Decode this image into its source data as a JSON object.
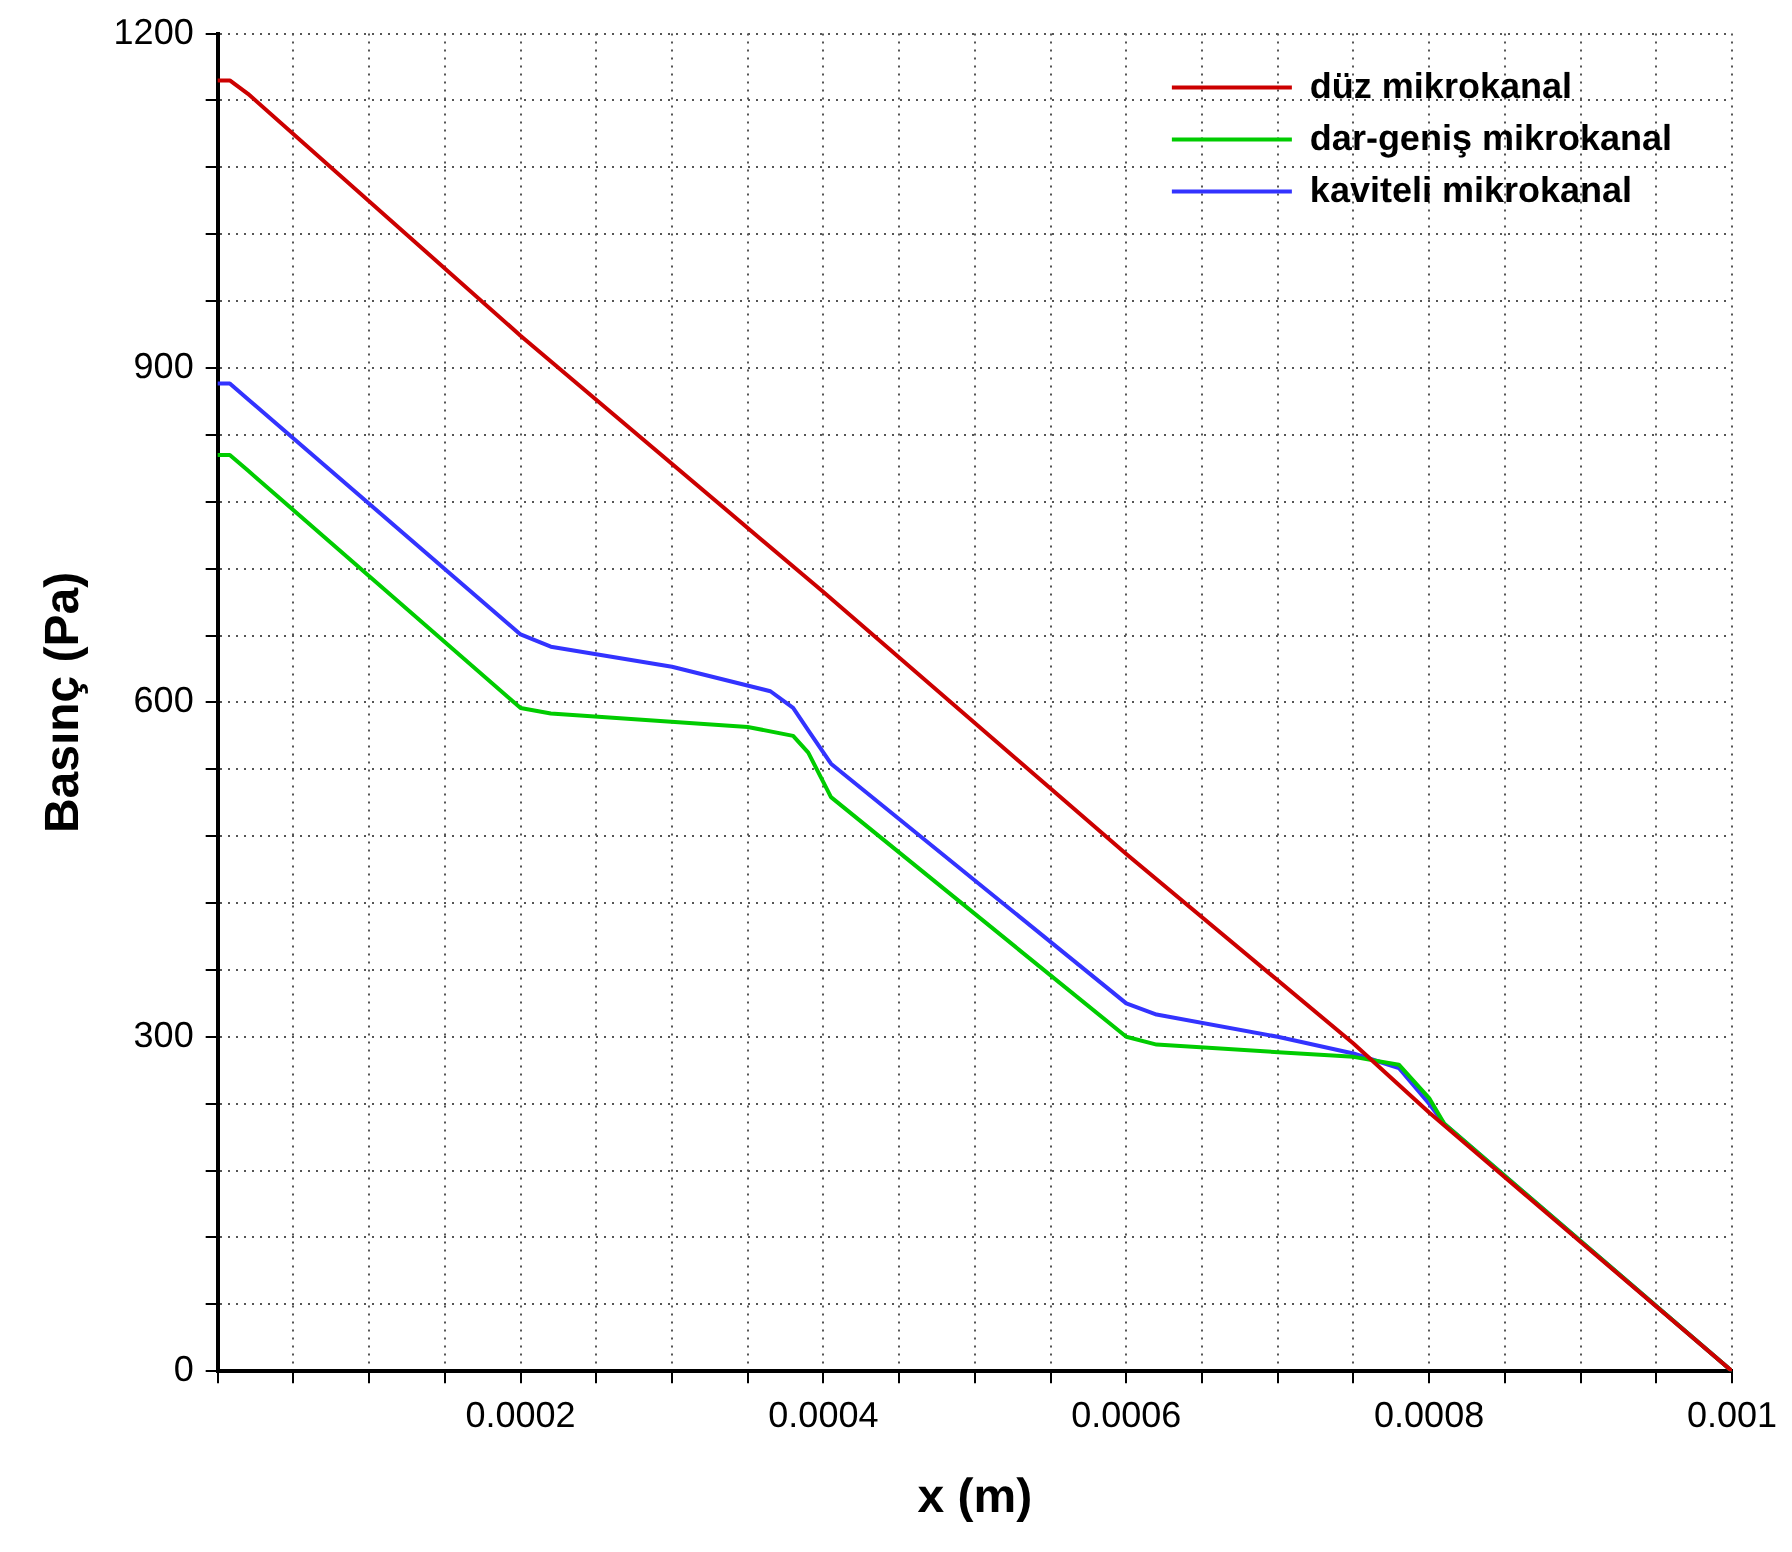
{
  "chart_data": {
    "type": "line",
    "xlabel": "x (m)",
    "ylabel": "Basınç (Pa)",
    "xlim": [
      0,
      0.001
    ],
    "ylim": [
      0,
      1200
    ],
    "xticks": [
      {
        "value": 0,
        "label": null
      },
      {
        "value": 5e-05,
        "label": null
      },
      {
        "value": 0.0001,
        "label": null
      },
      {
        "value": 0.00015,
        "label": null
      },
      0.0002,
      {
        "value": 0.00025,
        "label": null
      },
      {
        "value": 0.0003,
        "label": null
      },
      {
        "value": 0.00035,
        "label": null
      },
      0.0004,
      {
        "value": 0.00045,
        "label": null
      },
      {
        "value": 0.0005,
        "label": null
      },
      {
        "value": 0.00055,
        "label": null
      },
      0.0006,
      {
        "value": 0.00065,
        "label": null
      },
      {
        "value": 0.0007,
        "label": null
      },
      {
        "value": 0.00075,
        "label": null
      },
      0.0008,
      {
        "value": 0.00085,
        "label": null
      },
      {
        "value": 0.0009,
        "label": null
      },
      {
        "value": 0.00095,
        "label": null
      },
      0.001
    ],
    "yticks": [
      0,
      {
        "value": 60,
        "label": null
      },
      {
        "value": 120,
        "label": null
      },
      {
        "value": 180,
        "label": null
      },
      {
        "value": 240,
        "label": null
      },
      300,
      {
        "value": 360,
        "label": null
      },
      {
        "value": 420,
        "label": null
      },
      {
        "value": 480,
        "label": null
      },
      {
        "value": 540,
        "label": null
      },
      600,
      {
        "value": 660,
        "label": null
      },
      {
        "value": 720,
        "label": null
      },
      {
        "value": 780,
        "label": null
      },
      {
        "value": 840,
        "label": null
      },
      900,
      {
        "value": 960,
        "label": null
      },
      {
        "value": 1020,
        "label": null
      },
      {
        "value": 1080,
        "label": null
      },
      {
        "value": 1140,
        "label": null
      },
      1200
    ],
    "grid": true,
    "legend": "top right",
    "line_style": "solid",
    "marker": "none",
    "series": [
      {
        "name": "düz mikrokanal",
        "color": "#cc0000",
        "x": [
          0,
          8e-06,
          2e-05,
          0.0002,
          0.0004,
          0.0006,
          0.00075,
          0.0008,
          0.001
        ],
        "values": [
          1158,
          1158,
          1146,
          929,
          699,
          464,
          294,
          232,
          0
        ]
      },
      {
        "name": "dar-geniş mikrokanal",
        "color": "#00cc00",
        "x": [
          0,
          8e-06,
          2e-05,
          0.0002,
          0.00022,
          0.00035,
          0.00038,
          0.00039,
          0.000405,
          0.0006,
          0.00062,
          0.00075,
          0.00078,
          0.0008,
          0.00081,
          0.001
        ],
        "values": [
          822,
          822,
          808,
          595,
          590,
          578,
          570,
          555,
          515,
          300,
          293,
          282,
          275,
          245,
          222,
          0
        ]
      },
      {
        "name": "kaviteli mikrokanal",
        "color": "#3333ff",
        "x": [
          0,
          8e-06,
          2e-05,
          0.0002,
          0.00022,
          0.0003,
          0.000365,
          0.00038,
          0.00039,
          0.000405,
          0.0006,
          0.00062,
          0.0007,
          0.00075,
          0.00078,
          0.0008,
          0.00081,
          0.001
        ],
        "values": [
          886,
          886,
          872,
          661,
          650,
          632,
          610,
          595,
          575,
          545,
          330,
          320,
          300,
          285,
          272,
          240,
          222,
          0
        ]
      }
    ]
  }
}
